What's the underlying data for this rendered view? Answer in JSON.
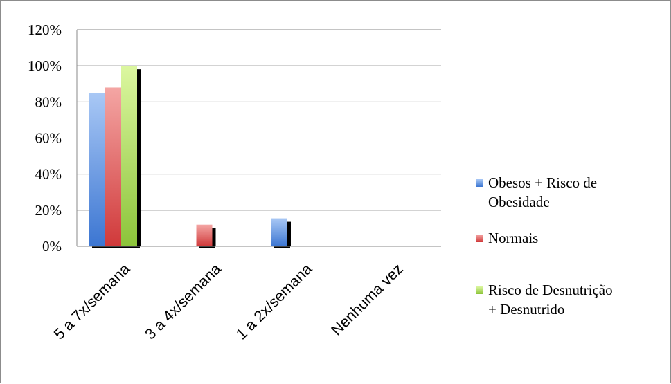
{
  "chart_data": {
    "type": "bar",
    "categories": [
      "5 a 7x/semana",
      "3 a  4x/semana",
      "1 a 2x/semana",
      "Nenhuma vez"
    ],
    "series": [
      {
        "name": "Obesos + Risco de Obesidade",
        "values": [
          85,
          0,
          15.5,
          0
        ],
        "color_light": "#a9c8f5",
        "color_dark": "#3c76d2"
      },
      {
        "name": "Normais",
        "values": [
          88,
          12,
          0,
          0
        ],
        "color_light": "#f4a6a4",
        "color_dark": "#d0393a"
      },
      {
        "name": "Risco de Desnutrição + Desnutrido",
        "values": [
          100,
          0,
          0,
          0
        ],
        "color_light": "#dcf7a0",
        "color_dark": "#8cc43a"
      }
    ],
    "legend_lines": [
      [
        "Obesos + Risco de",
        "Obesidade"
      ],
      [
        "Normais"
      ],
      [
        "Risco de Desnutrição",
        "+ Desnutrido"
      ]
    ],
    "ylim": [
      0,
      120
    ],
    "ytick_labels": [
      "0%",
      "20%",
      "40%",
      "60%",
      "80%",
      "100%",
      "120%"
    ],
    "grid": true,
    "legend_position": "right",
    "title": "",
    "xlabel": "",
    "ylabel": ""
  }
}
